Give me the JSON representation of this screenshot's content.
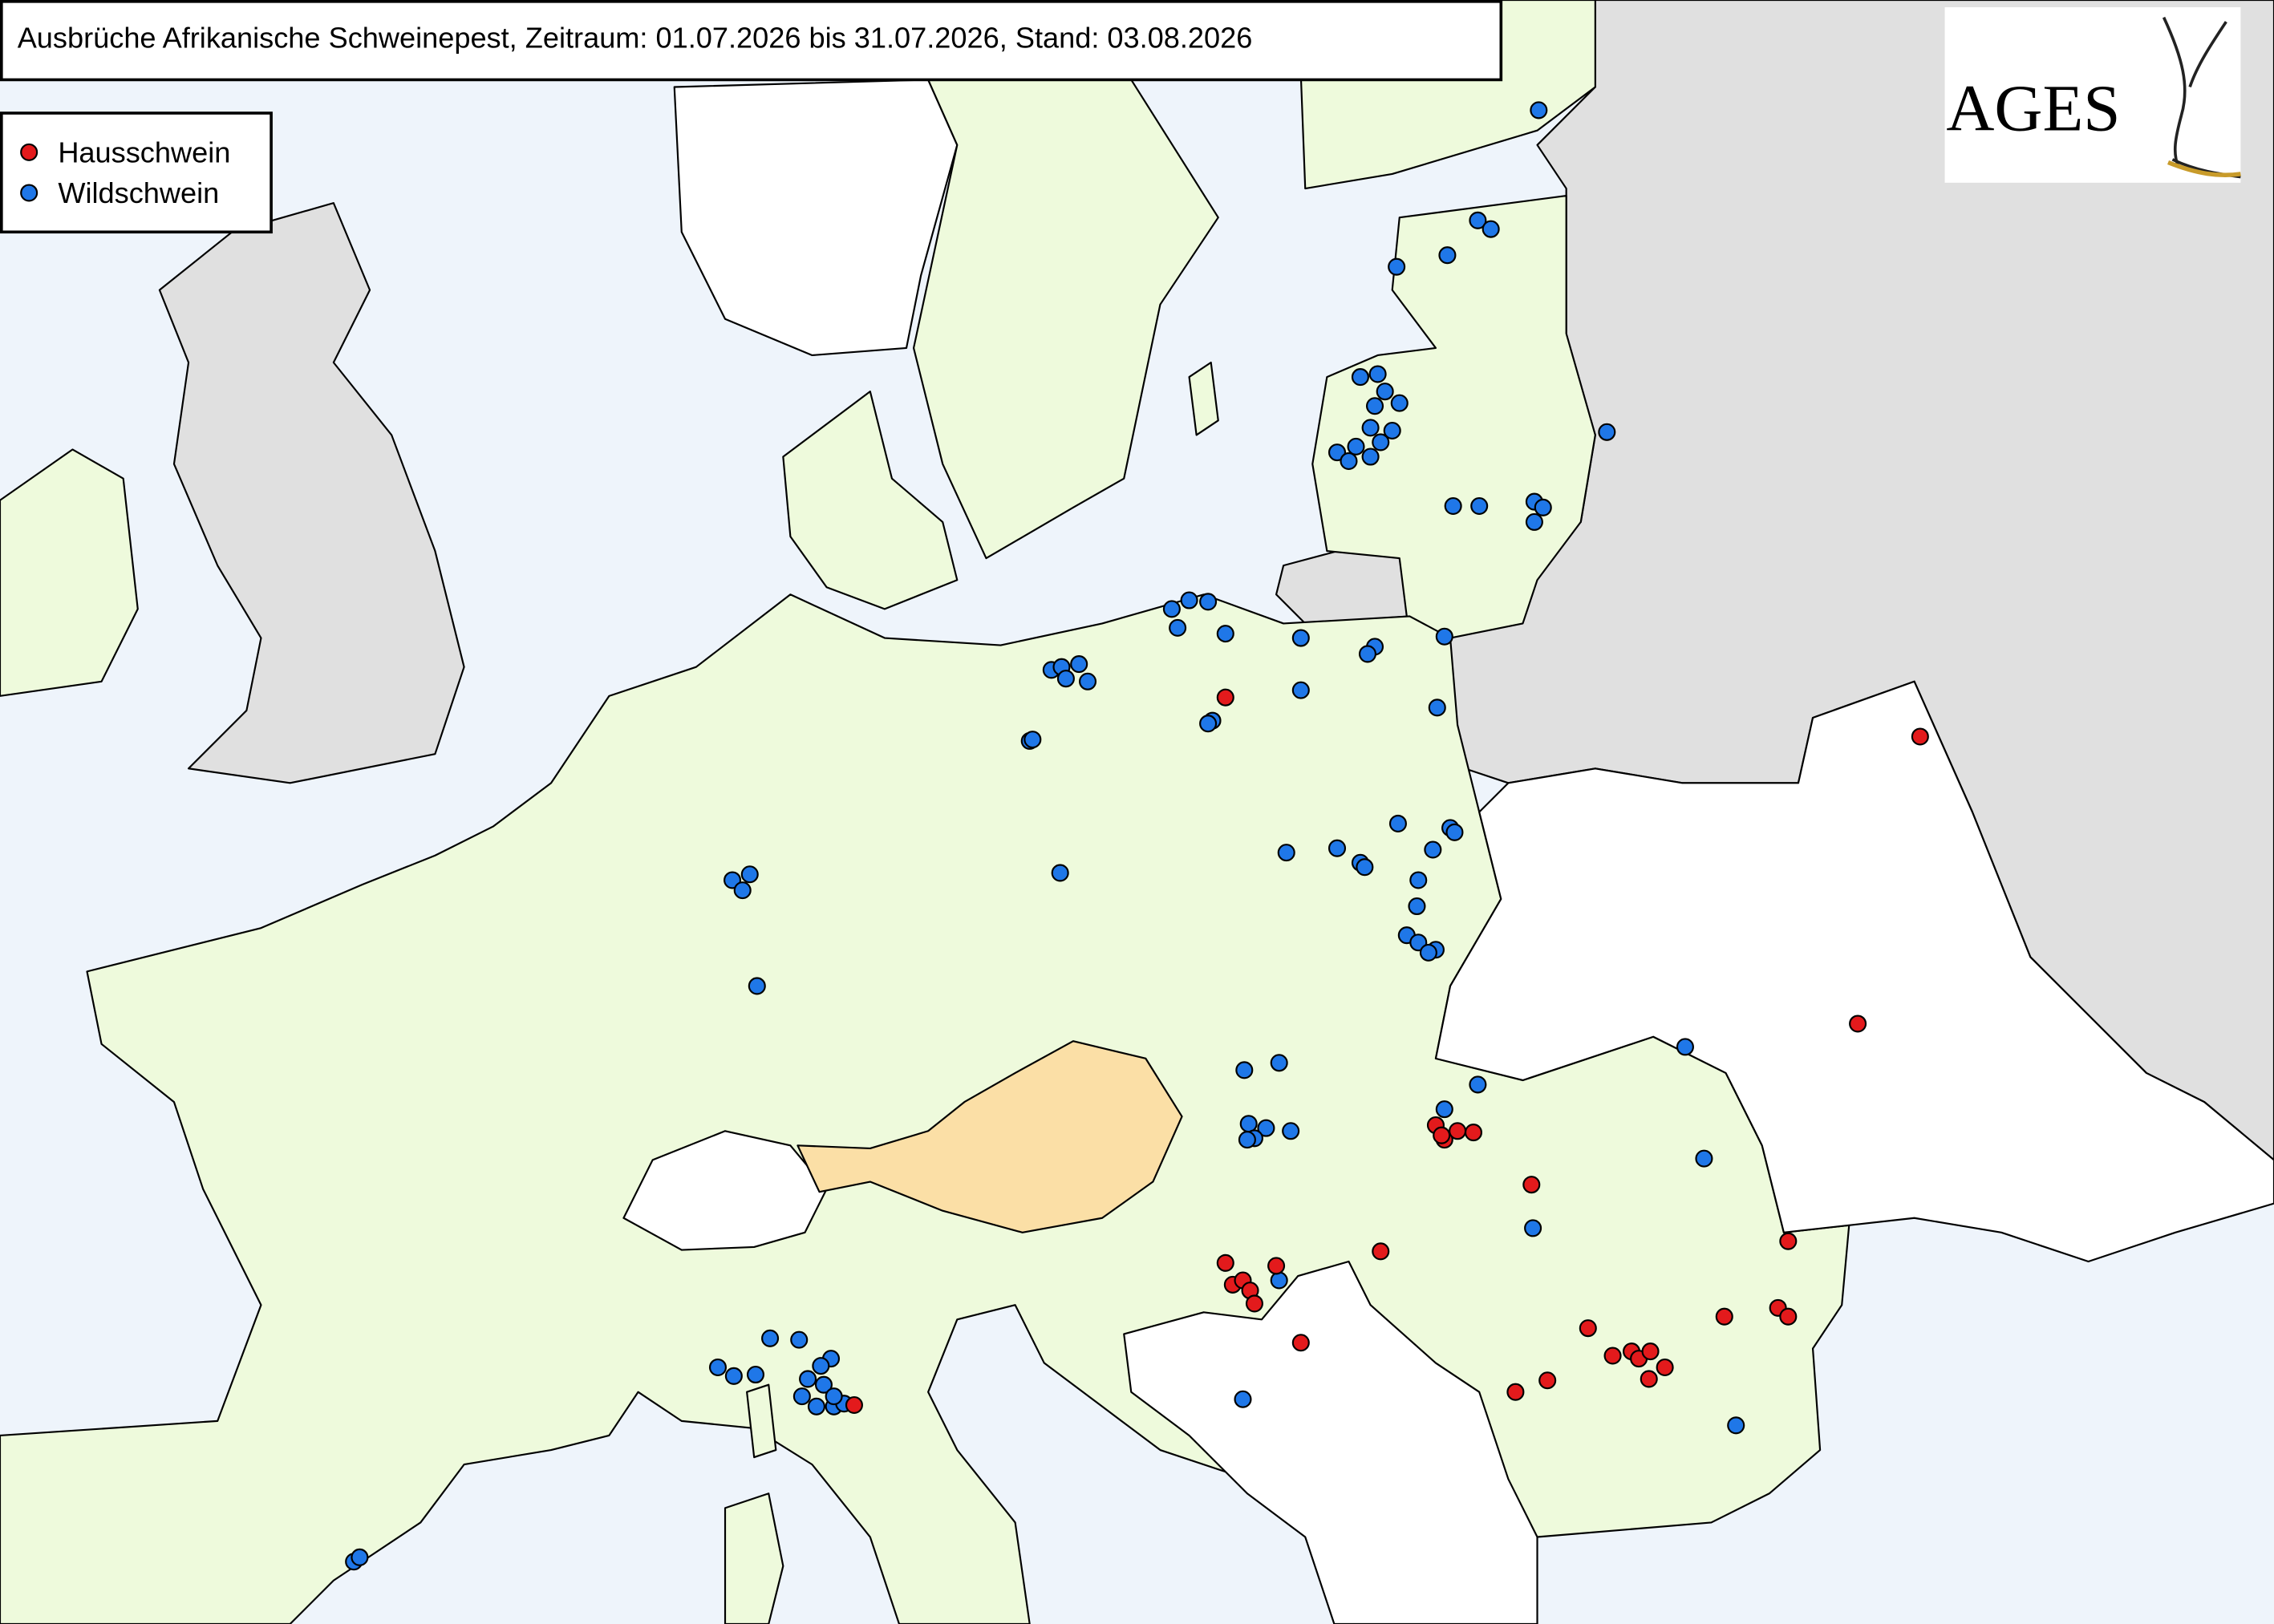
{
  "header": {
    "title": "Ausbrüche Afrikanische Schweinepest, Zeitraum: 01.07.2026 bis 31.07.2026, Stand: 03.08.2026"
  },
  "legend": {
    "items": [
      {
        "label": "Hausschwein",
        "color": "#e31a1c"
      },
      {
        "label": "Wildschwein",
        "color": "#1f77e8"
      }
    ]
  },
  "logo": {
    "text": "AGES"
  }
}
